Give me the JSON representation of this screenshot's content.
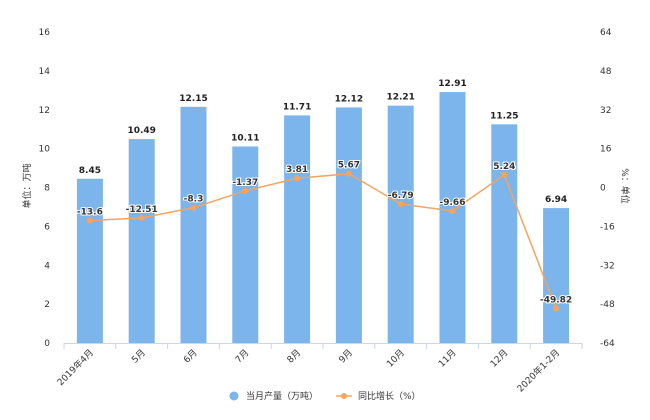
{
  "chart_data": {
    "type": "bar+line",
    "categories": [
      "2019年4月",
      "5月",
      "6月",
      "7月",
      "8月",
      "9月",
      "10月",
      "11月",
      "12月",
      "2020年1-2月"
    ],
    "series": [
      {
        "name": "当月产量（万吨）",
        "type": "bar",
        "axis": "left",
        "color": "#7cb5ec",
        "values": [
          8.45,
          10.49,
          12.15,
          10.11,
          11.71,
          12.12,
          12.21,
          12.91,
          11.25,
          6.94
        ],
        "labels": [
          "8.45",
          "10.49",
          "12.15",
          "10.11",
          "11.71",
          "12.12",
          "12.21",
          "12.91",
          "11.25",
          "6.94"
        ]
      },
      {
        "name": "同比增长（%）",
        "type": "line",
        "axis": "right",
        "color": "#f7a35c",
        "values": [
          -13.6,
          -12.51,
          -8.3,
          -1.37,
          3.81,
          5.67,
          -6.79,
          -9.66,
          5.24,
          -49.82
        ],
        "labels": [
          "-13.6",
          "-12.51",
          "-8.3",
          "-1.37",
          "3.81",
          "5.67",
          "-6.79",
          "-9.66",
          "5.24",
          "-49.82"
        ]
      }
    ],
    "ylabel": "单位：万吨",
    "y2label": "%：单位",
    "ylim": [
      0,
      16
    ],
    "yticks": [
      0,
      2,
      4,
      6,
      8,
      10,
      12,
      14,
      16
    ],
    "y2lim": [
      -64,
      64
    ],
    "y2ticks": [
      -64,
      -48,
      -32,
      -16,
      0,
      16,
      32,
      48,
      64
    ],
    "grid": false,
    "legend_position": "bottom-center"
  }
}
